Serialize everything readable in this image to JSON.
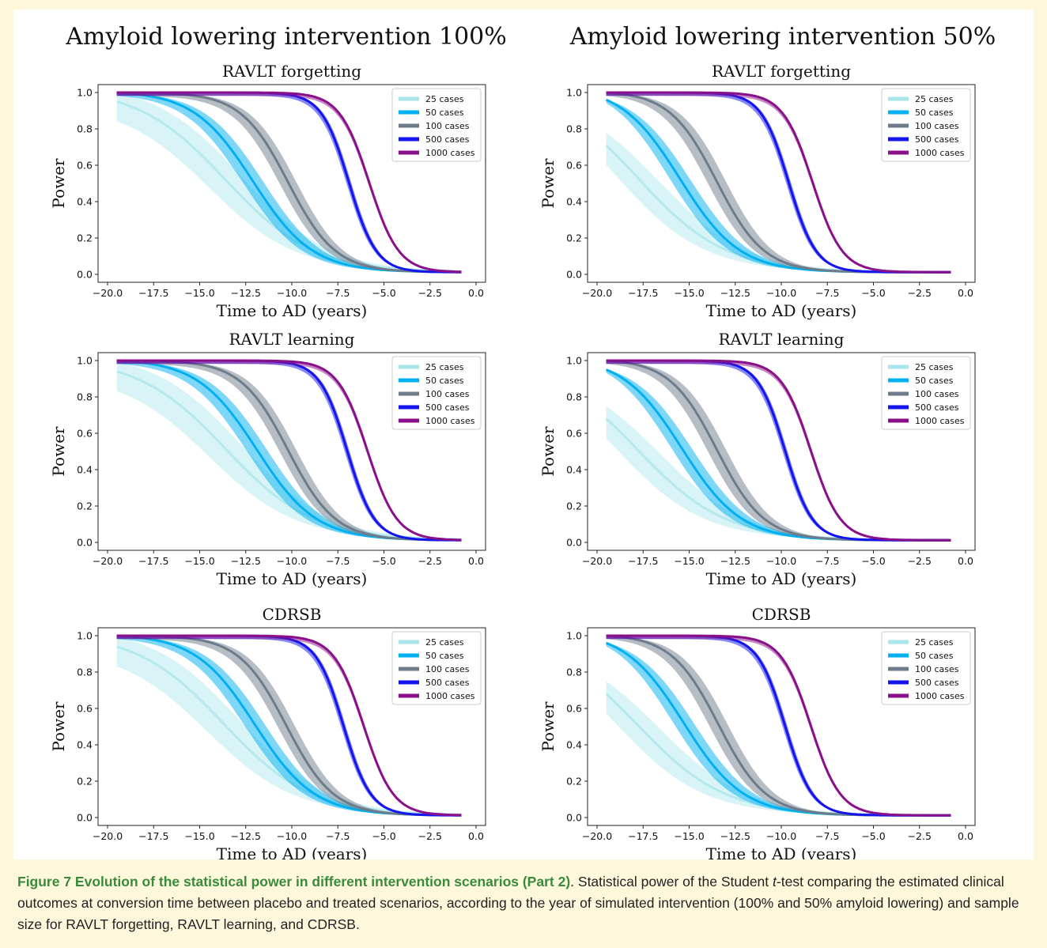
{
  "figure": {
    "column_titles": [
      "Amyloid lowering intervention 100%",
      "Amyloid lowering intervention 50%"
    ]
  },
  "colors": {
    "25 cases": "#a8e6ea",
    "50 cases": "#00b0f0",
    "100 cases": "#6e7b8b",
    "500 cases": "#1414ee",
    "1000 cases": "#8a0f8a"
  },
  "chart_data": [
    {
      "type": "line",
      "panel": "100% / RAVLT forgetting",
      "title": "RAVLT forgetting",
      "xlabel": "Time to AD (years)",
      "ylabel": "Power",
      "xlim": [
        -20.0,
        0.0
      ],
      "ylim": [
        0.0,
        1.0
      ],
      "xticks": [
        "−20.0",
        "−17.5",
        "−15.0",
        "−12.5",
        "−10.0",
        "−7.5",
        "−5.0",
        "−2.5",
        "0.0"
      ],
      "yticks": [
        "0.0",
        "0.2",
        "0.4",
        "0.6",
        "0.8",
        "1.0"
      ],
      "legend_position": "top-right",
      "grid": false,
      "x_range": [
        -19.5,
        -0.8
      ],
      "series": [
        {
          "name": "25 cases",
          "power_at_start": 0.95,
          "half_power_time": -13.6,
          "band": 0.9
        },
        {
          "name": "50 cases",
          "power_at_start": 1.0,
          "half_power_time": -12.1,
          "band": 0.55
        },
        {
          "name": "100 cases",
          "power_at_start": 1.0,
          "half_power_time": -10.2,
          "band": 0.45
        },
        {
          "name": "500 cases",
          "power_at_start": 1.0,
          "half_power_time": -6.9,
          "band": 0.12
        },
        {
          "name": "1000 cases",
          "power_at_start": 1.0,
          "half_power_time": -5.8,
          "band": 0.05
        }
      ]
    },
    {
      "type": "line",
      "panel": "50% / RAVLT forgetting",
      "title": "RAVLT forgetting",
      "xlabel": "Time to AD (years)",
      "ylabel": "Power",
      "xlim": [
        -20.0,
        0.0
      ],
      "ylim": [
        0.0,
        1.0
      ],
      "xticks": [
        "−20.0",
        "−17.5",
        "−15.0",
        "−12.5",
        "−10.0",
        "−7.5",
        "−5.0",
        "−2.5",
        "0.0"
      ],
      "yticks": [
        "0.0",
        "0.2",
        "0.4",
        "0.6",
        "0.8",
        "1.0"
      ],
      "legend_position": "top-right",
      "grid": false,
      "x_range": [
        -19.5,
        -0.8
      ],
      "series": [
        {
          "name": "25 cases",
          "power_at_start": 0.71,
          "half_power_time": -17.8,
          "band": 1.2
        },
        {
          "name": "50 cases",
          "power_at_start": 0.96,
          "half_power_time": -15.5,
          "band": 0.6
        },
        {
          "name": "100 cases",
          "power_at_start": 1.0,
          "half_power_time": -13.5,
          "band": 0.5
        },
        {
          "name": "500 cases",
          "power_at_start": 1.0,
          "half_power_time": -9.6,
          "band": 0.12
        },
        {
          "name": "1000 cases",
          "power_at_start": 1.0,
          "half_power_time": -8.3,
          "band": 0.05
        }
      ]
    },
    {
      "type": "line",
      "panel": "100% / RAVLT learning",
      "title": "RAVLT learning",
      "xlabel": "Time to AD (years)",
      "ylabel": "Power",
      "xlim": [
        -20.0,
        0.0
      ],
      "ylim": [
        0.0,
        1.0
      ],
      "xticks": [
        "−20.0",
        "−17.5",
        "−15.0",
        "−12.5",
        "−10.0",
        "−7.5",
        "−5.0",
        "−2.5",
        "0.0"
      ],
      "yticks": [
        "0.0",
        "0.2",
        "0.4",
        "0.6",
        "0.8",
        "1.0"
      ],
      "legend_position": "top-right",
      "grid": false,
      "x_range": [
        -19.5,
        -0.8
      ],
      "series": [
        {
          "name": "25 cases",
          "power_at_start": 0.94,
          "half_power_time": -13.6,
          "band": 0.9
        },
        {
          "name": "50 cases",
          "power_at_start": 1.0,
          "half_power_time": -11.9,
          "band": 0.55
        },
        {
          "name": "100 cases",
          "power_at_start": 1.0,
          "half_power_time": -10.2,
          "band": 0.45
        },
        {
          "name": "500 cases",
          "power_at_start": 1.0,
          "half_power_time": -7.0,
          "band": 0.12
        },
        {
          "name": "1000 cases",
          "power_at_start": 1.0,
          "half_power_time": -5.9,
          "band": 0.05
        }
      ]
    },
    {
      "type": "line",
      "panel": "50% / RAVLT learning",
      "title": "RAVLT learning",
      "xlabel": "Time to AD (years)",
      "ylabel": "Power",
      "xlim": [
        -20.0,
        0.0
      ],
      "ylim": [
        0.0,
        1.0
      ],
      "xticks": [
        "−20.0",
        "−17.5",
        "−15.0",
        "−12.5",
        "−10.0",
        "−7.5",
        "−5.0",
        "−2.5",
        "0.0"
      ],
      "yticks": [
        "0.0",
        "0.2",
        "0.4",
        "0.6",
        "0.8",
        "1.0"
      ],
      "legend_position": "top-right",
      "grid": false,
      "x_range": [
        -19.5,
        -0.8
      ],
      "series": [
        {
          "name": "25 cases",
          "power_at_start": 0.68,
          "half_power_time": -17.8,
          "band": 1.2
        },
        {
          "name": "50 cases",
          "power_at_start": 0.95,
          "half_power_time": -15.4,
          "band": 0.6
        },
        {
          "name": "100 cases",
          "power_at_start": 1.0,
          "half_power_time": -13.5,
          "band": 0.5
        },
        {
          "name": "500 cases",
          "power_at_start": 1.0,
          "half_power_time": -9.8,
          "band": 0.12
        },
        {
          "name": "1000 cases",
          "power_at_start": 1.0,
          "half_power_time": -8.4,
          "band": 0.05
        }
      ]
    },
    {
      "type": "line",
      "panel": "100% / CDRSB",
      "title": "CDRSB",
      "xlabel": "Time to AD (years)",
      "ylabel": "Power",
      "xlim": [
        -20.0,
        0.0
      ],
      "ylim": [
        0.0,
        1.0
      ],
      "xticks": [
        "−20.0",
        "−17.5",
        "−15.0",
        "−12.5",
        "−10.0",
        "−7.5",
        "−5.0",
        "−2.5",
        "0.0"
      ],
      "yticks": [
        "0.0",
        "0.2",
        "0.4",
        "0.6",
        "0.8",
        "1.0"
      ],
      "legend_position": "top-right",
      "grid": false,
      "x_range": [
        -19.5,
        -0.8
      ],
      "series": [
        {
          "name": "25 cases",
          "power_at_start": 0.94,
          "half_power_time": -13.7,
          "band": 0.9
        },
        {
          "name": "50 cases",
          "power_at_start": 1.0,
          "half_power_time": -12.0,
          "band": 0.55
        },
        {
          "name": "100 cases",
          "power_at_start": 1.0,
          "half_power_time": -10.3,
          "band": 0.45
        },
        {
          "name": "500 cases",
          "power_at_start": 1.0,
          "half_power_time": -7.2,
          "band": 0.12
        },
        {
          "name": "1000 cases",
          "power_at_start": 1.0,
          "half_power_time": -6.1,
          "band": 0.05
        }
      ]
    },
    {
      "type": "line",
      "panel": "50% / CDRSB",
      "title": "CDRSB",
      "xlabel": "Time to AD (years)",
      "ylabel": "Power",
      "xlim": [
        -20.0,
        0.0
      ],
      "ylim": [
        0.0,
        1.0
      ],
      "xticks": [
        "−20.0",
        "−17.5",
        "−15.0",
        "−12.5",
        "−10.0",
        "−7.5",
        "−5.0",
        "−2.5",
        "0.0"
      ],
      "yticks": [
        "0.0",
        "0.2",
        "0.4",
        "0.6",
        "0.8",
        "1.0"
      ],
      "legend_position": "top-right",
      "grid": false,
      "x_range": [
        -19.5,
        -0.8
      ],
      "series": [
        {
          "name": "25 cases",
          "power_at_start": 0.68,
          "half_power_time": -17.8,
          "band": 1.2
        },
        {
          "name": "50 cases",
          "power_at_start": 0.96,
          "half_power_time": -15.3,
          "band": 0.6
        },
        {
          "name": "100 cases",
          "power_at_start": 1.0,
          "half_power_time": -13.4,
          "band": 0.5
        },
        {
          "name": "500 cases",
          "power_at_start": 1.0,
          "half_power_time": -9.8,
          "band": 0.12
        },
        {
          "name": "1000 cases",
          "power_at_start": 1.0,
          "half_power_time": -8.4,
          "band": 0.05
        }
      ]
    }
  ],
  "caption": {
    "heading": "Figure 7 Evolution of the statistical power in different intervention scenarios (Part 2)",
    "heading_end": ".",
    "text_1": " Statistical power of the Student ",
    "t_italic": "t",
    "text_2": "-test comparing the estimated clinical outcomes at conversion time between placebo and treated scenarios, according to the year of simulated intervention (100% and 50% amyloid lowering) and sample size for RAVLT forgetting, RAVLT learning, and CDRSB."
  }
}
